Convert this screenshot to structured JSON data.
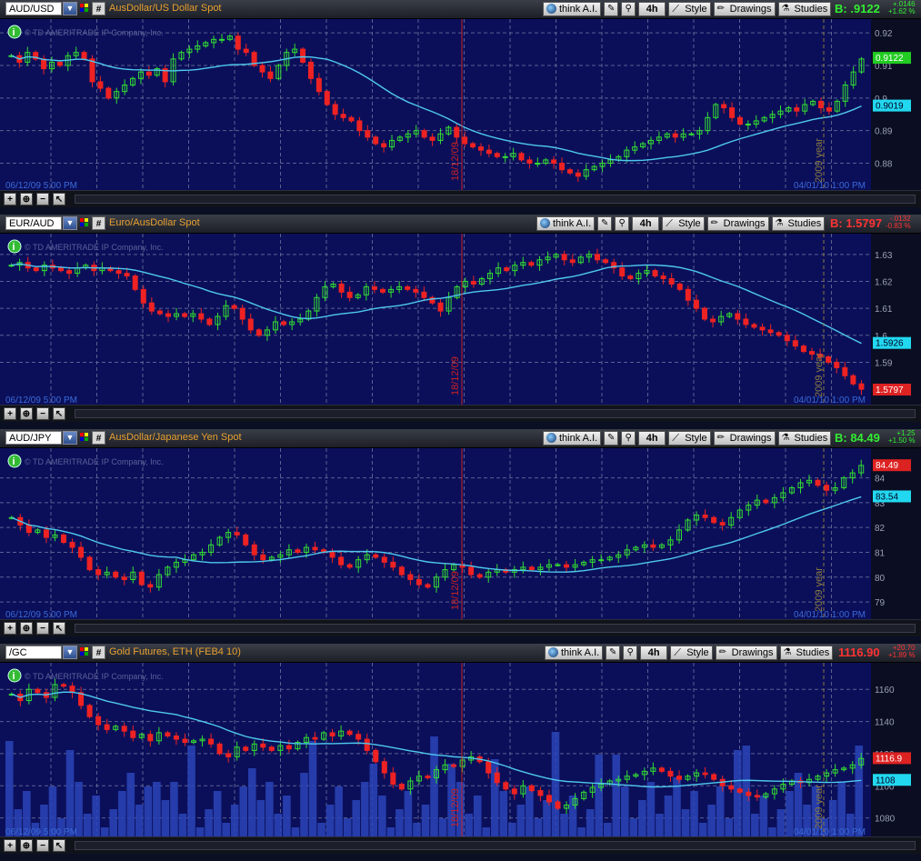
{
  "toolbar": {
    "think_ai": "think A.I.",
    "timeframe": "4h",
    "style": "Style",
    "drawings": "Drawings",
    "studies": "Studies"
  },
  "copyright": "© TD AMERITRADE IP Company, Inc.",
  "cursor_date": "18/12/09",
  "year_marker": "2009 year",
  "panels": [
    {
      "symbol": "AUD/USD",
      "description": "AusDollar/US Dollar Spot",
      "bid": "B: .9122",
      "bid_color": "#33ee33",
      "change_abs": "+.0146",
      "change_pct": "+1.62 %",
      "price_ticks": [
        "0.92",
        "0.91",
        "0.9",
        "0.89",
        "0.88"
      ],
      "price_tag": "0.9122",
      "price_tag_color": "#22cc22",
      "ma_tag": "0.9019",
      "start_label": "06/12/09 5:00 PM",
      "end_label": "04/01/10 1:00 PM",
      "chart_data": {
        "type": "candlestick",
        "ylim": [
          0.874,
          0.922
        ],
        "ma_period": 20,
        "closes": [
          0.913,
          0.911,
          0.914,
          0.912,
          0.909,
          0.911,
          0.91,
          0.913,
          0.914,
          0.912,
          0.905,
          0.903,
          0.9,
          0.902,
          0.904,
          0.906,
          0.908,
          0.907,
          0.909,
          0.905,
          0.912,
          0.914,
          0.915,
          0.916,
          0.917,
          0.918,
          0.918,
          0.919,
          0.915,
          0.914,
          0.91,
          0.908,
          0.906,
          0.91,
          0.914,
          0.915,
          0.911,
          0.906,
          0.902,
          0.898,
          0.895,
          0.894,
          0.893,
          0.89,
          0.888,
          0.886,
          0.885,
          0.887,
          0.888,
          0.889,
          0.89,
          0.888,
          0.887,
          0.889,
          0.891,
          0.888,
          0.886,
          0.885,
          0.884,
          0.883,
          0.882,
          0.882,
          0.883,
          0.881,
          0.88,
          0.88,
          0.881,
          0.88,
          0.878,
          0.877,
          0.876,
          0.878,
          0.879,
          0.88,
          0.881,
          0.882,
          0.884,
          0.885,
          0.886,
          0.887,
          0.888,
          0.889,
          0.888,
          0.889,
          0.889,
          0.89,
          0.894,
          0.898,
          0.897,
          0.894,
          0.892,
          0.892,
          0.893,
          0.894,
          0.895,
          0.896,
          0.897,
          0.896,
          0.898,
          0.899,
          0.897,
          0.896,
          0.899,
          0.904,
          0.908,
          0.912
        ]
      }
    },
    {
      "symbol": "EUR/AUD",
      "description": "Euro/AusDollar Spot",
      "bid": "B: 1.5797",
      "bid_color": "#ff3333",
      "change_abs": "-.0132",
      "change_pct": "-0.83 %",
      "price_ticks": [
        "1.63",
        "1.62",
        "1.61",
        "1.6",
        "1.59"
      ],
      "price_tag": "1.5797",
      "price_tag_color": "#dd2222",
      "ma_tag": "1.5926",
      "start_label": "06/12/09 5:00 PM",
      "end_label": "04/01/10 1:00 PM",
      "chart_data": {
        "type": "candlestick",
        "ylim": [
          1.577,
          1.635
        ],
        "ma_period": 20,
        "closes": [
          1.626,
          1.627,
          1.625,
          1.624,
          1.626,
          1.625,
          1.624,
          1.623,
          1.625,
          1.626,
          1.624,
          1.625,
          1.624,
          1.623,
          1.622,
          1.617,
          1.612,
          1.609,
          1.608,
          1.607,
          1.608,
          1.607,
          1.608,
          1.606,
          1.604,
          1.607,
          1.611,
          1.61,
          1.606,
          1.602,
          1.6,
          1.602,
          1.605,
          1.604,
          1.605,
          1.606,
          1.609,
          1.614,
          1.618,
          1.619,
          1.616,
          1.614,
          1.615,
          1.618,
          1.617,
          1.616,
          1.617,
          1.618,
          1.617,
          1.616,
          1.614,
          1.612,
          1.609,
          1.614,
          1.618,
          1.62,
          1.619,
          1.621,
          1.623,
          1.625,
          1.624,
          1.626,
          1.627,
          1.626,
          1.628,
          1.629,
          1.63,
          1.628,
          1.627,
          1.629,
          1.63,
          1.628,
          1.627,
          1.625,
          1.622,
          1.621,
          1.623,
          1.624,
          1.622,
          1.621,
          1.619,
          1.617,
          1.613,
          1.61,
          1.606,
          1.605,
          1.607,
          1.608,
          1.606,
          1.604,
          1.603,
          1.602,
          1.601,
          1.6,
          1.598,
          1.596,
          1.594,
          1.593,
          1.592,
          1.59,
          1.588,
          1.585,
          1.582,
          1.58
        ]
      }
    },
    {
      "symbol": "AUD/JPY",
      "description": "AusDollar/Japanese Yen Spot",
      "bid": "B: 84.49",
      "bid_color": "#33ee33",
      "change_abs": "+1.25",
      "change_pct": "+1.50 %",
      "price_ticks": [
        "84",
        "83",
        "82",
        "81",
        "80",
        "79"
      ],
      "price_tag": "84.49",
      "price_tag_color": "#dd2222",
      "ma_tag": "83.54",
      "start_label": "06/12/09 5:00 PM",
      "end_label": "04/01/10 1:00 PM",
      "chart_data": {
        "type": "candlestick",
        "ylim": [
          78.6,
          84.9
        ],
        "ma_period": 20,
        "closes": [
          82.4,
          82.1,
          81.8,
          81.9,
          81.6,
          81.7,
          81.4,
          81.2,
          80.8,
          80.3,
          80.1,
          80.2,
          80.0,
          79.9,
          80.2,
          79.7,
          79.6,
          80.1,
          80.4,
          80.6,
          80.7,
          80.9,
          81.0,
          81.3,
          81.6,
          81.8,
          81.7,
          81.3,
          80.9,
          80.7,
          80.8,
          80.9,
          81.1,
          81.0,
          81.2,
          81.1,
          81.0,
          80.8,
          80.5,
          80.4,
          80.7,
          80.9,
          80.8,
          80.6,
          80.4,
          80.1,
          79.9,
          79.7,
          79.6,
          80.0,
          80.3,
          80.5,
          80.4,
          80.1,
          80.0,
          80.2,
          80.3,
          80.2,
          80.3,
          80.4,
          80.3,
          80.4,
          80.5,
          80.5,
          80.4,
          80.5,
          80.6,
          80.7,
          80.7,
          80.8,
          80.9,
          81.1,
          81.2,
          81.3,
          81.2,
          81.3,
          81.5,
          81.9,
          82.3,
          82.5,
          82.4,
          82.2,
          82.1,
          82.4,
          82.7,
          82.9,
          83.1,
          83.0,
          83.2,
          83.4,
          83.6,
          83.8,
          83.9,
          83.7,
          83.5,
          83.6,
          84.0,
          84.2,
          84.5
        ]
      }
    },
    {
      "symbol": "/GC",
      "description": "Gold Futures, ETH (FEB4 10)",
      "bid": "1116.90",
      "bid_color": "#ff3333",
      "change_abs": "+20.70",
      "change_pct": "+1.89 %",
      "price_ticks": [
        "1160",
        "1140",
        "1120",
        "1100",
        "1080"
      ],
      "price_tag": "1116.9",
      "price_tag_color": "#dd2222",
      "ma_tag": "1108",
      "start_label": "06/12/09 5:00 PM",
      "end_label": "04/01/10 1:00 PM",
      "chart_data": {
        "type": "candlestick",
        "ylim": [
          1073,
          1172
        ],
        "ma_period": 20,
        "has_volume": true,
        "closes": [
          1157,
          1153,
          1160,
          1158,
          1155,
          1163,
          1162,
          1158,
          1150,
          1143,
          1138,
          1135,
          1137,
          1134,
          1130,
          1132,
          1128,
          1133,
          1131,
          1129,
          1127,
          1128,
          1129,
          1126,
          1120,
          1118,
          1124,
          1122,
          1126,
          1124,
          1122,
          1125,
          1123,
          1127,
          1130,
          1129,
          1133,
          1131,
          1134,
          1132,
          1129,
          1122,
          1115,
          1108,
          1101,
          1098,
          1103,
          1106,
          1105,
          1110,
          1113,
          1112,
          1116,
          1118,
          1115,
          1108,
          1102,
          1098,
          1095,
          1100,
          1097,
          1094,
          1090,
          1086,
          1088,
          1092,
          1096,
          1099,
          1101,
          1103,
          1104,
          1106,
          1107,
          1109,
          1111,
          1109,
          1106,
          1104,
          1106,
          1108,
          1107,
          1104,
          1100,
          1098,
          1096,
          1094,
          1093,
          1095,
          1098,
          1101,
          1103,
          1102,
          1104,
          1106,
          1108,
          1110,
          1111,
          1113,
          1117
        ]
      }
    }
  ]
}
